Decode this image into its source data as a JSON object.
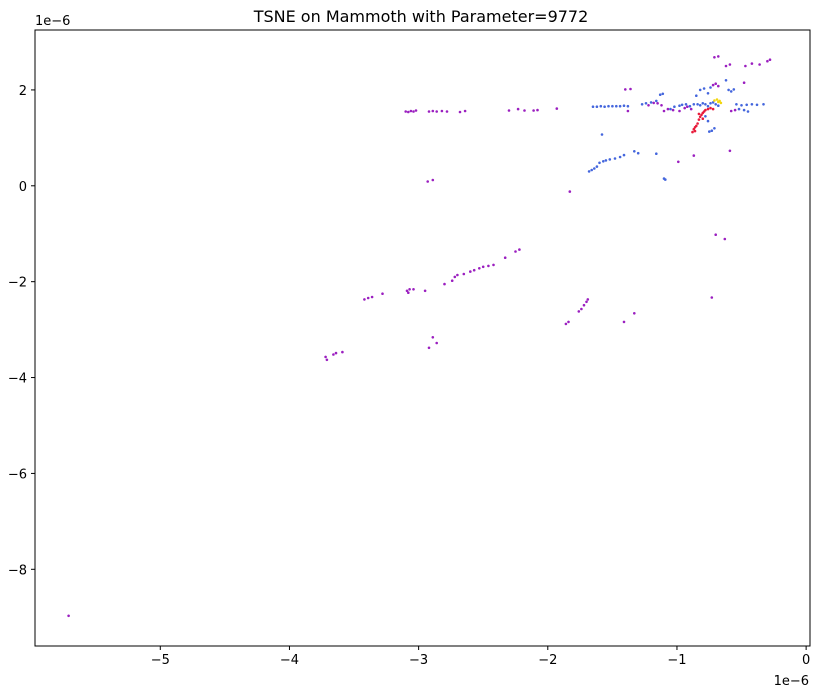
{
  "chart_data": {
    "type": "scatter",
    "title": "TSNE on Mammoth with Parameter=9772",
    "xlabel": "",
    "ylabel": "",
    "x_offset_text": "1e−6",
    "y_offset_text": "1e−6",
    "xlim": [
      -5.97,
      0.03
    ],
    "ylim": [
      -9.6,
      3.25
    ],
    "xticks": [
      -5,
      -4,
      -3,
      -2,
      -1,
      0
    ],
    "xtick_labels": [
      "−5",
      "−4",
      "−3",
      "−2",
      "−1",
      "0"
    ],
    "yticks": [
      -8,
      -6,
      -4,
      -2,
      0,
      2
    ],
    "ytick_labels": [
      "−8",
      "−6",
      "−4",
      "−2",
      "0",
      "2"
    ],
    "grid": false,
    "legend": "none",
    "series": [
      {
        "color": "#9b1fc0",
        "points": [
          [
            -5.71,
            -8.97
          ],
          [
            -3.72,
            -3.57
          ],
          [
            -3.71,
            -3.63
          ],
          [
            -3.66,
            -3.52
          ],
          [
            -3.64,
            -3.49
          ],
          [
            -3.59,
            -3.47
          ],
          [
            -3.42,
            -2.37
          ],
          [
            -3.39,
            -2.34
          ],
          [
            -3.36,
            -2.32
          ],
          [
            -3.28,
            -2.25
          ],
          [
            -3.09,
            -2.19
          ],
          [
            -3.08,
            -2.23
          ],
          [
            -3.07,
            -2.16
          ],
          [
            -3.04,
            -2.16
          ],
          [
            -2.95,
            -2.19
          ],
          [
            -2.92,
            -3.38
          ],
          [
            -2.89,
            -3.16
          ],
          [
            -2.86,
            -3.28
          ],
          [
            -2.8,
            -2.05
          ],
          [
            -2.74,
            -1.98
          ],
          [
            -2.72,
            -1.9
          ],
          [
            -2.7,
            -1.86
          ],
          [
            -2.65,
            -1.84
          ],
          [
            -2.6,
            -1.79
          ],
          [
            -2.57,
            -1.76
          ],
          [
            -2.53,
            -1.72
          ],
          [
            -2.5,
            -1.69
          ],
          [
            -2.46,
            -1.67
          ],
          [
            -2.42,
            -1.65
          ],
          [
            -2.33,
            -1.5
          ],
          [
            -2.25,
            -1.37
          ],
          [
            -2.22,
            -1.33
          ],
          [
            -1.86,
            -2.88
          ],
          [
            -1.84,
            -2.84
          ],
          [
            -1.76,
            -2.62
          ],
          [
            -1.74,
            -2.57
          ],
          [
            -1.72,
            -2.49
          ],
          [
            -1.7,
            -2.42
          ],
          [
            -1.69,
            -2.37
          ],
          [
            -1.41,
            -2.84
          ],
          [
            -1.33,
            -2.66
          ],
          [
            -0.73,
            -2.33
          ],
          [
            -0.7,
            -1.02
          ],
          [
            -0.63,
            -1.11
          ],
          [
            -1.83,
            -0.12
          ],
          [
            -2.93,
            0.09
          ],
          [
            -2.89,
            0.12
          ],
          [
            -3.1,
            1.55
          ],
          [
            -3.08,
            1.54
          ],
          [
            -3.06,
            1.56
          ],
          [
            -3.04,
            1.55
          ],
          [
            -3.02,
            1.57
          ],
          [
            -2.92,
            1.55
          ],
          [
            -2.89,
            1.56
          ],
          [
            -2.86,
            1.55
          ],
          [
            -2.82,
            1.56
          ],
          [
            -2.78,
            1.55
          ],
          [
            -2.68,
            1.54
          ],
          [
            -2.64,
            1.56
          ],
          [
            -2.3,
            1.57
          ],
          [
            -2.23,
            1.6
          ],
          [
            -2.18,
            1.57
          ],
          [
            -2.11,
            1.57
          ],
          [
            -2.08,
            1.58
          ],
          [
            -1.93,
            1.61
          ],
          [
            -1.4,
            2.01
          ],
          [
            -1.36,
            2.02
          ],
          [
            -1.38,
            1.56
          ],
          [
            -1.22,
            1.68
          ],
          [
            -1.18,
            1.73
          ],
          [
            -1.15,
            1.72
          ],
          [
            -1.12,
            1.68
          ],
          [
            -1.1,
            1.56
          ],
          [
            -1.07,
            1.6
          ],
          [
            -1.03,
            1.58
          ],
          [
            -0.98,
            1.56
          ],
          [
            -0.94,
            1.62
          ],
          [
            -0.92,
            1.65
          ],
          [
            -0.89,
            1.6
          ],
          [
            -0.87,
            0.63
          ],
          [
            -0.99,
            0.5
          ],
          [
            -0.59,
            0.73
          ],
          [
            -0.72,
            2.1
          ],
          [
            -0.7,
            2.13
          ],
          [
            -0.68,
            2.08
          ],
          [
            -0.71,
            2.68
          ],
          [
            -0.68,
            2.7
          ],
          [
            -0.62,
            2.5
          ],
          [
            -0.59,
            2.53
          ],
          [
            -0.47,
            2.5
          ],
          [
            -0.42,
            2.55
          ],
          [
            -0.36,
            2.53
          ],
          [
            -0.3,
            2.6
          ],
          [
            -0.28,
            2.63
          ],
          [
            -0.48,
            2.15
          ],
          [
            -0.58,
            1.56
          ],
          [
            -0.55,
            1.58
          ]
        ]
      },
      {
        "color": "#4466dd",
        "points": [
          [
            -1.68,
            0.3
          ],
          [
            -1.66,
            0.33
          ],
          [
            -1.64,
            0.36
          ],
          [
            -1.62,
            0.4
          ],
          [
            -1.6,
            0.48
          ],
          [
            -1.57,
            0.51
          ],
          [
            -1.55,
            0.53
          ],
          [
            -1.52,
            0.55
          ],
          [
            -1.48,
            0.57
          ],
          [
            -1.44,
            0.6
          ],
          [
            -1.41,
            0.64
          ],
          [
            -1.33,
            0.72
          ],
          [
            -1.3,
            0.68
          ],
          [
            -1.1,
            0.15
          ],
          [
            -1.09,
            0.13
          ],
          [
            -1.16,
            0.67
          ],
          [
            -1.58,
            1.07
          ],
          [
            -1.65,
            1.65
          ],
          [
            -1.62,
            1.65
          ],
          [
            -1.59,
            1.66
          ],
          [
            -1.56,
            1.65
          ],
          [
            -1.53,
            1.66
          ],
          [
            -1.5,
            1.66
          ],
          [
            -1.47,
            1.66
          ],
          [
            -1.44,
            1.66
          ],
          [
            -1.41,
            1.67
          ],
          [
            -1.38,
            1.66
          ],
          [
            -1.27,
            1.7
          ],
          [
            -1.24,
            1.72
          ],
          [
            -1.2,
            1.74
          ],
          [
            -1.16,
            1.77
          ],
          [
            -1.13,
            1.9
          ],
          [
            -1.11,
            1.92
          ],
          [
            -1.05,
            1.6
          ],
          [
            -1.02,
            1.65
          ],
          [
            -0.98,
            1.67
          ],
          [
            -0.96,
            1.69
          ],
          [
            -0.93,
            1.7
          ],
          [
            -0.9,
            1.66
          ],
          [
            -0.87,
            1.7
          ],
          [
            -0.84,
            1.7
          ],
          [
            -0.82,
            1.68
          ],
          [
            -0.8,
            1.72
          ],
          [
            -0.78,
            1.7
          ],
          [
            -0.76,
            1.66
          ],
          [
            -0.74,
            1.72
          ],
          [
            -0.72,
            1.74
          ],
          [
            -0.7,
            1.7
          ],
          [
            -0.68,
            1.67
          ],
          [
            -0.85,
            1.88
          ],
          [
            -0.82,
            2.0
          ],
          [
            -0.79,
            2.03
          ],
          [
            -0.76,
            1.93
          ],
          [
            -0.74,
            2.05
          ],
          [
            -0.6,
            2.0
          ],
          [
            -0.58,
            1.97
          ],
          [
            -0.56,
            2.01
          ],
          [
            -0.62,
            2.2
          ],
          [
            -0.54,
            1.7
          ],
          [
            -0.5,
            1.68
          ],
          [
            -0.46,
            1.69
          ],
          [
            -0.42,
            1.7
          ],
          [
            -0.38,
            1.69
          ],
          [
            -0.33,
            1.7
          ],
          [
            -0.52,
            1.6
          ],
          [
            -0.48,
            1.58
          ],
          [
            -0.45,
            1.55
          ],
          [
            -0.75,
            1.13
          ],
          [
            -0.73,
            1.15
          ],
          [
            -0.71,
            1.2
          ],
          [
            -0.76,
            1.35
          ],
          [
            -0.78,
            1.45
          ]
        ]
      },
      {
        "color": "#e81c3c",
        "points": [
          [
            -0.88,
            1.12
          ],
          [
            -0.87,
            1.18
          ],
          [
            -0.86,
            1.22
          ],
          [
            -0.85,
            1.25
          ],
          [
            -0.84,
            1.3
          ],
          [
            -0.83,
            1.38
          ],
          [
            -0.82,
            1.44
          ],
          [
            -0.81,
            1.48
          ],
          [
            -0.8,
            1.52
          ],
          [
            -0.79,
            1.55
          ],
          [
            -0.78,
            1.58
          ],
          [
            -0.76,
            1.6
          ],
          [
            -0.74,
            1.62
          ],
          [
            -0.72,
            1.6
          ],
          [
            -0.86,
            1.14
          ],
          [
            -0.83,
            1.5
          ],
          [
            -0.8,
            1.4
          ]
        ]
      },
      {
        "color": "#f2d60c",
        "points": [
          [
            -0.71,
            1.78
          ],
          [
            -0.69,
            1.8
          ],
          [
            -0.67,
            1.77
          ],
          [
            -0.66,
            1.73
          ],
          [
            -0.68,
            1.75
          ]
        ]
      }
    ]
  }
}
